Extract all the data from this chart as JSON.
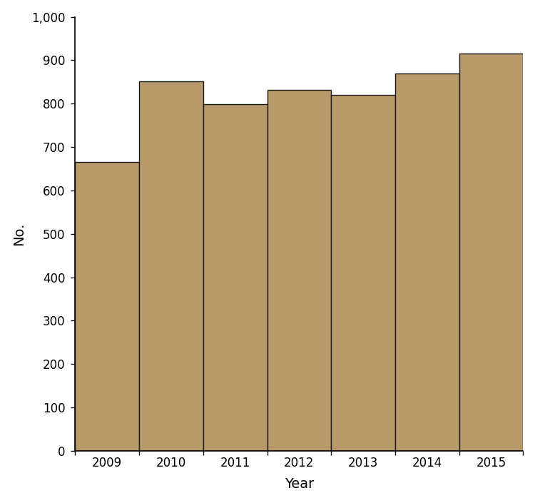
{
  "categories": [
    "2009",
    "2010",
    "2011",
    "2012",
    "2013",
    "2014",
    "2015"
  ],
  "values": [
    665,
    851,
    799,
    831,
    820,
    869,
    916
  ],
  "bar_color": "#B8996A",
  "bar_edgecolor": "#1a1a1a",
  "bar_linewidth": 1.0,
  "xlabel": "Year",
  "ylabel": "No.",
  "ylim": [
    0,
    1000
  ],
  "yticks": [
    0,
    100,
    200,
    300,
    400,
    500,
    600,
    700,
    800,
    900,
    1000
  ],
  "ytick_labels": [
    "0",
    "100",
    "200",
    "300",
    "400",
    "500",
    "600",
    "700",
    "800",
    "900",
    "1,000"
  ],
  "xlabel_fontsize": 14,
  "ylabel_fontsize": 14,
  "tick_fontsize": 12,
  "bar_width": 1.0
}
